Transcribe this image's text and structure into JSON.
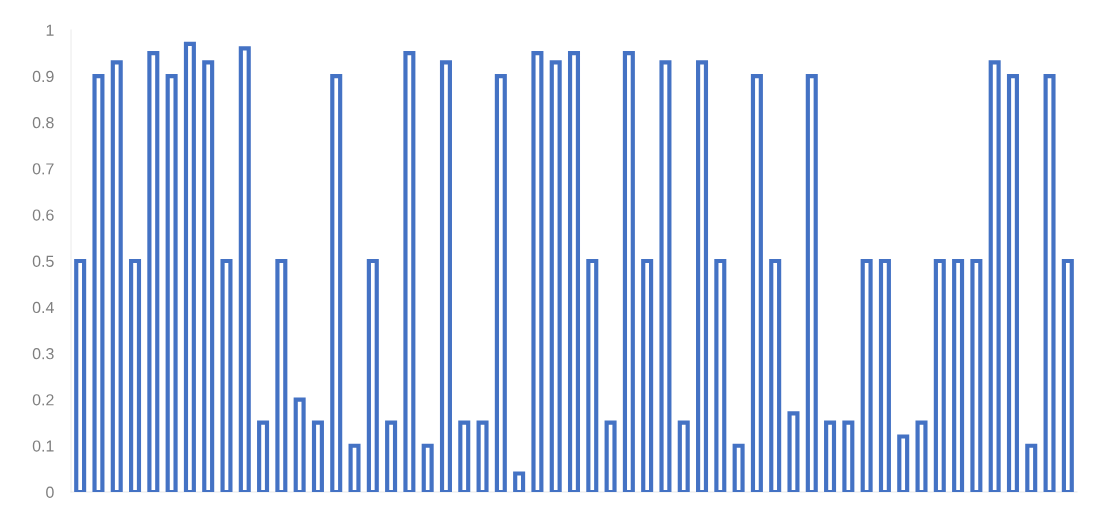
{
  "chart_data": {
    "type": "bar",
    "categories": [
      null,
      null,
      null,
      null,
      null,
      null,
      null,
      null,
      null,
      null,
      null,
      null,
      null,
      null,
      null,
      null,
      null,
      null,
      null,
      null,
      null,
      null,
      null,
      null,
      null,
      null,
      null,
      null,
      null,
      null,
      null,
      null,
      null,
      null,
      null,
      null,
      null,
      null,
      null,
      null,
      null,
      null,
      null,
      null,
      null,
      null,
      null,
      null,
      null,
      null,
      null,
      null,
      null,
      null,
      null
    ],
    "values": [
      0.5,
      0.9,
      0.93,
      0.5,
      0.95,
      0.9,
      0.97,
      0.93,
      0.5,
      0.96,
      0.15,
      0.5,
      0.2,
      0.15,
      0.9,
      0.1,
      0.5,
      0.15,
      0.95,
      0.1,
      0.93,
      0.15,
      0.15,
      0.9,
      0.04,
      0.95,
      0.93,
      0.95,
      0.5,
      0.15,
      0.95,
      0.5,
      0.93,
      0.15,
      0.93,
      0.5,
      0.1,
      0.9,
      0.5,
      0.17,
      0.9,
      0.15,
      0.15,
      0.5,
      0.5,
      0.12,
      0.15,
      0.5,
      0.5,
      0.5,
      0.93,
      0.9,
      0.1,
      0.9,
      0.5
    ],
    "color": "#4472c4",
    "ylim": [
      0,
      1
    ],
    "yticks": [
      0,
      0.1,
      0.2,
      0.3,
      0.4,
      0.5,
      0.6,
      0.7,
      0.8,
      0.9,
      1
    ],
    "tick_labels": "y"
  }
}
